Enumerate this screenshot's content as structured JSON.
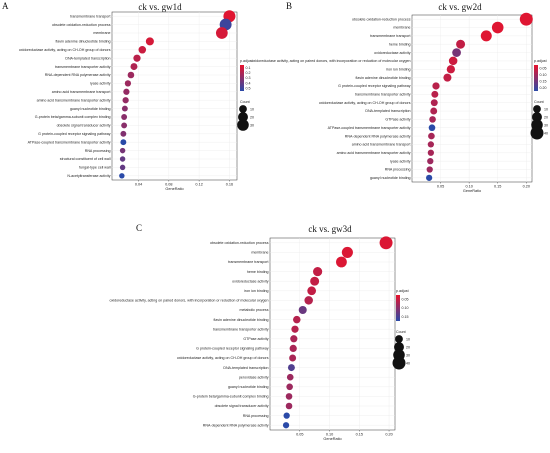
{
  "chart_data": [
    {
      "type": "scatter",
      "panel_label": "A",
      "title": "ck vs. gw1d",
      "xlabel": "GeneRatio",
      "ylabel": "",
      "xlim": [
        0.005,
        0.17
      ],
      "xticks": [
        "0.04",
        "0.08",
        "0.12",
        "0.16"
      ],
      "legend_color_title": "p.adjust",
      "legend_color_labels": [
        "0.1",
        "0.2",
        "0.3",
        "0.4",
        "0.5"
      ],
      "legend_size_title": "Count",
      "legend_size_labels": [
        "10",
        "20",
        "30"
      ],
      "legend_position": "right",
      "terms": [
        {
          "name": "transmembrane transport",
          "x": 0.16,
          "count": 33,
          "p": 0.02
        },
        {
          "name": "obsolete oxidation-reduction process",
          "x": 0.155,
          "count": 32,
          "p": 0.45
        },
        {
          "name": "membrane",
          "x": 0.15,
          "count": 31,
          "p": 0.05
        },
        {
          "name": "flavin adenine dinucleotide binding",
          "x": 0.055,
          "count": 11,
          "p": 0.05
        },
        {
          "name": "oxidoreductase activity, acting on CH-OH group of donors",
          "x": 0.045,
          "count": 9,
          "p": 0.08
        },
        {
          "name": "DNA-templated transcription",
          "x": 0.038,
          "count": 8,
          "p": 0.12
        },
        {
          "name": "transmembrane transporter activity",
          "x": 0.034,
          "count": 7,
          "p": 0.15
        },
        {
          "name": "RNA-dependent RNA polymerase activity",
          "x": 0.03,
          "count": 6,
          "p": 0.2
        },
        {
          "name": "lyase activity",
          "x": 0.026,
          "count": 5,
          "p": 0.2
        },
        {
          "name": "amino acid transmembrane transport",
          "x": 0.024,
          "count": 5,
          "p": 0.22
        },
        {
          "name": "amino acid transmembrane transporter activity",
          "x": 0.023,
          "count": 5,
          "p": 0.22
        },
        {
          "name": "guanyl nucleotide binding",
          "x": 0.022,
          "count": 4,
          "p": 0.25
        },
        {
          "name": "G-protein beta/gamma-subunit complex binding",
          "x": 0.021,
          "count": 4,
          "p": 0.25
        },
        {
          "name": "obsolete signal transducer activity",
          "x": 0.021,
          "count": 4,
          "p": 0.25
        },
        {
          "name": "G protein-coupled receptor signaling pathway",
          "x": 0.02,
          "count": 4,
          "p": 0.27
        },
        {
          "name": "ATPase-coupled transmembrane transporter activity",
          "x": 0.02,
          "count": 4,
          "p": 0.5
        },
        {
          "name": "RNA processing",
          "x": 0.019,
          "count": 3,
          "p": 0.3
        },
        {
          "name": "structural constituent of cell wall",
          "x": 0.019,
          "count": 3,
          "p": 0.35
        },
        {
          "name": "fungal-type cell wall",
          "x": 0.019,
          "count": 3,
          "p": 0.35
        },
        {
          "name": "N-acetyltransferase activity",
          "x": 0.018,
          "count": 3,
          "p": 0.5
        }
      ]
    },
    {
      "type": "scatter",
      "panel_label": "B",
      "title": "ck vs. gw2d",
      "xlabel": "GeneRatio",
      "ylabel": "",
      "xlim": [
        0.0,
        0.21
      ],
      "xticks": [
        "0.05",
        "0.10",
        "0.15",
        "0.20"
      ],
      "legend_color_title": "p.adjust",
      "legend_color_labels": [
        "0.05",
        "0.10",
        "0.15",
        "0.20"
      ],
      "legend_size_title": "Count",
      "legend_size_labels": [
        "10",
        "20",
        "30",
        "40"
      ],
      "legend_position": "right",
      "terms": [
        {
          "name": "obsolete oxidation-reduction process",
          "x": 0.2,
          "count": 40,
          "p": 0.01
        },
        {
          "name": "membrane",
          "x": 0.15,
          "count": 30,
          "p": 0.01
        },
        {
          "name": "transmembrane transport",
          "x": 0.13,
          "count": 26,
          "p": 0.01
        },
        {
          "name": "heme binding",
          "x": 0.085,
          "count": 15,
          "p": 0.04
        },
        {
          "name": "oxidoreductase activity",
          "x": 0.078,
          "count": 14,
          "p": 0.12
        },
        {
          "name": "oxidoreductase activity, acting on paired donors, with incorporation or reduction of molecular oxygen",
          "x": 0.072,
          "count": 13,
          "p": 0.03
        },
        {
          "name": "iron ion binding",
          "x": 0.068,
          "count": 12,
          "p": 0.03
        },
        {
          "name": "flavin adenine dinucleotide binding",
          "x": 0.062,
          "count": 11,
          "p": 0.04
        },
        {
          "name": "G protein-coupled receptor signaling pathway",
          "x": 0.042,
          "count": 8,
          "p": 0.05
        },
        {
          "name": "transmembrane transporter activity",
          "x": 0.04,
          "count": 7,
          "p": 0.05
        },
        {
          "name": "oxidoreductase activity, acting on CH-OH group of donors",
          "x": 0.039,
          "count": 7,
          "p": 0.06
        },
        {
          "name": "DNA-templated transcription",
          "x": 0.038,
          "count": 7,
          "p": 0.06
        },
        {
          "name": "GTPase activity",
          "x": 0.036,
          "count": 6,
          "p": 0.07
        },
        {
          "name": "ATPase-coupled transmembrane transporter activity",
          "x": 0.035,
          "count": 6,
          "p": 0.2
        },
        {
          "name": "RNA-dependent RNA polymerase activity",
          "x": 0.034,
          "count": 6,
          "p": 0.07
        },
        {
          "name": "amino acid transmembrane transport",
          "x": 0.033,
          "count": 5,
          "p": 0.07
        },
        {
          "name": "amino acid transmembrane transporter activity",
          "x": 0.033,
          "count": 5,
          "p": 0.07
        },
        {
          "name": "lyase activity",
          "x": 0.032,
          "count": 5,
          "p": 0.08
        },
        {
          "name": "RNA processing",
          "x": 0.031,
          "count": 5,
          "p": 0.08
        },
        {
          "name": "guanyl nucleotide binding",
          "x": 0.03,
          "count": 5,
          "p": 0.22
        }
      ]
    },
    {
      "type": "scatter",
      "panel_label": "C",
      "title": "ck vs. gw3d",
      "xlabel": "GeneRatio",
      "ylabel": "",
      "xlim": [
        0.0,
        0.21
      ],
      "xticks": [
        "0.05",
        "0.10",
        "0.15",
        "0.20"
      ],
      "legend_color_title": "p.adjust",
      "legend_color_labels": [
        "0.05",
        "0.10",
        "0.15"
      ],
      "legend_size_title": "Count",
      "legend_size_labels": [
        "10",
        "20",
        "30",
        "40"
      ],
      "legend_position": "right",
      "terms": [
        {
          "name": "obsolete oxidation-reduction process",
          "x": 0.195,
          "count": 40,
          "p": 0.01
        },
        {
          "name": "membrane",
          "x": 0.13,
          "count": 27,
          "p": 0.01
        },
        {
          "name": "transmembrane transport",
          "x": 0.12,
          "count": 25,
          "p": 0.01
        },
        {
          "name": "heme binding",
          "x": 0.08,
          "count": 16,
          "p": 0.03
        },
        {
          "name": "oxidoreductase activity",
          "x": 0.075,
          "count": 15,
          "p": 0.03
        },
        {
          "name": "iron ion binding",
          "x": 0.07,
          "count": 14,
          "p": 0.03
        },
        {
          "name": "oxidoreductase activity, acting on paired donors, with incorporation or reduction of molecular oxygen",
          "x": 0.065,
          "count": 13,
          "p": 0.04
        },
        {
          "name": "metabolic process",
          "x": 0.055,
          "count": 11,
          "p": 0.1
        },
        {
          "name": "flavin adenine dinucleotide binding",
          "x": 0.045,
          "count": 9,
          "p": 0.04
        },
        {
          "name": "transmembrane transporter activity",
          "x": 0.042,
          "count": 8,
          "p": 0.04
        },
        {
          "name": "GTPase activity",
          "x": 0.04,
          "count": 8,
          "p": 0.05
        },
        {
          "name": "G protein-coupled receptor signaling pathway",
          "x": 0.039,
          "count": 8,
          "p": 0.05
        },
        {
          "name": "oxidoreductase activity, acting on CH-OH group of donors",
          "x": 0.038,
          "count": 7,
          "p": 0.05
        },
        {
          "name": "DNA-templated transcription",
          "x": 0.036,
          "count": 7,
          "p": 0.12
        },
        {
          "name": "peroxidase activity",
          "x": 0.034,
          "count": 6,
          "p": 0.06
        },
        {
          "name": "guanyl nucleotide binding",
          "x": 0.033,
          "count": 6,
          "p": 0.06
        },
        {
          "name": "G-protein beta/gamma-subunit complex binding",
          "x": 0.032,
          "count": 6,
          "p": 0.06
        },
        {
          "name": "obsolete signal transducer activity",
          "x": 0.032,
          "count": 6,
          "p": 0.06
        },
        {
          "name": "RNA processing",
          "x": 0.028,
          "count": 5,
          "p": 0.15
        },
        {
          "name": "RNA-dependent RNA polymerase activity",
          "x": 0.027,
          "count": 5,
          "p": 0.15
        }
      ]
    }
  ],
  "colors": {
    "low": "#e8132c",
    "high": "#2a4aa8",
    "panel": "#ffffff",
    "grid": "#ebebeb",
    "border": "#333333"
  }
}
